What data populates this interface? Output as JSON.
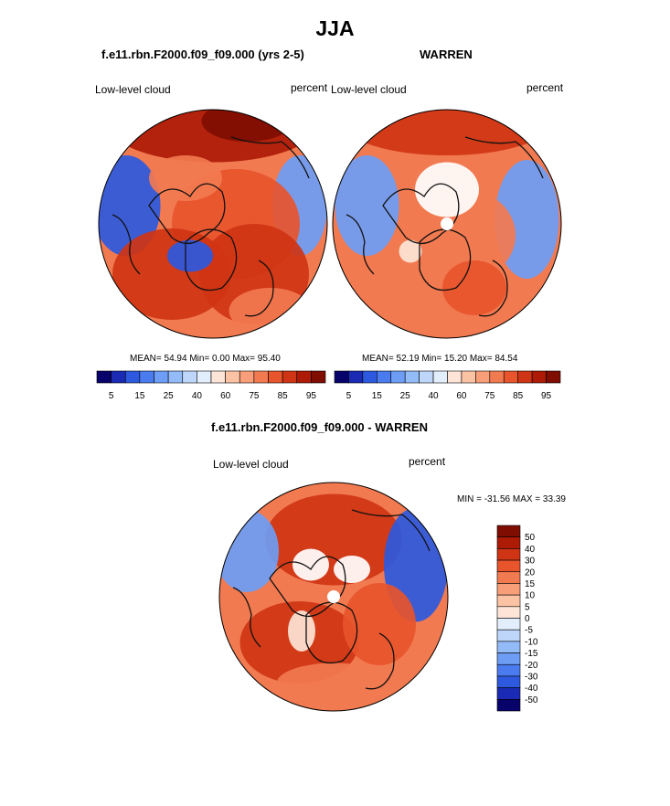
{
  "page_title": "JJA",
  "panels": [
    {
      "title": "f.e11.rbn.F2000.f09_f09.000 (yrs 2-5)",
      "variable": "Low-level cloud",
      "units": "percent",
      "stats": "MEAN=  54.94  Min=   0.00  Max=  95.40"
    },
    {
      "title": "WARREN",
      "variable": "Low-level cloud",
      "units": "percent",
      "stats": "MEAN=  52.19  Min=  15.20  Max=  84.54"
    }
  ],
  "diff_panel": {
    "title": "f.e11.rbn.F2000.f09_f09.000 - WARREN",
    "variable": "Low-level cloud",
    "units": "percent",
    "minmax": "MIN = -31.56 MAX =  33.39"
  },
  "chart_data": [
    {
      "type": "heatmap",
      "title": "f.e11.rbn.F2000.f09_f09.000 (yrs 2-5)",
      "projection": "north polar stereographic",
      "variable": "Low-level cloud",
      "units": "percent",
      "mean": 54.94,
      "min": 0.0,
      "max": 95.4,
      "colorbar_levels": [
        5,
        10,
        15,
        20,
        25,
        30,
        40,
        50,
        60,
        70,
        75,
        80,
        85,
        90,
        95
      ],
      "colorbar_labels": [
        "5",
        "15",
        "25",
        "40",
        "60",
        "75",
        "85",
        "95"
      ],
      "colors": [
        "#08036a",
        "#1a2ab4",
        "#2d59df",
        "#4a7cf0",
        "#6d9df5",
        "#93bbf8",
        "#bdd6fa",
        "#e3eefc",
        "#fde4d6",
        "#fbc2a4",
        "#f89e78",
        "#f27a50",
        "#e8542c",
        "#cf3414",
        "#ad1a06",
        "#7f0d02"
      ]
    },
    {
      "type": "heatmap",
      "title": "WARREN",
      "projection": "north polar stereographic",
      "variable": "Low-level cloud",
      "units": "percent",
      "mean": 52.19,
      "min": 15.2,
      "max": 84.54,
      "colorbar_levels": [
        5,
        10,
        15,
        20,
        25,
        30,
        40,
        50,
        60,
        70,
        75,
        80,
        85,
        90,
        95
      ],
      "colorbar_labels": [
        "5",
        "15",
        "25",
        "40",
        "60",
        "75",
        "85",
        "95"
      ],
      "colors": [
        "#08036a",
        "#1a2ab4",
        "#2d59df",
        "#4a7cf0",
        "#6d9df5",
        "#93bbf8",
        "#bdd6fa",
        "#e3eefc",
        "#fde4d6",
        "#fbc2a4",
        "#f89e78",
        "#f27a50",
        "#e8542c",
        "#cf3414",
        "#ad1a06",
        "#7f0d02"
      ]
    },
    {
      "type": "heatmap",
      "title": "f.e11.rbn.F2000.f09_f09.000 - WARREN",
      "projection": "north polar stereographic",
      "variable": "Low-level cloud",
      "units": "percent",
      "min": -31.56,
      "max": 33.39,
      "colorbar_orientation": "vertical",
      "colorbar_labels": [
        "50",
        "40",
        "30",
        "20",
        "15",
        "10",
        "5",
        "0",
        "-5",
        "-10",
        "-15",
        "-20",
        "-30",
        "-40",
        "-50"
      ],
      "colors": [
        "#7f0d02",
        "#ad1a06",
        "#cf3414",
        "#e8542c",
        "#f27a50",
        "#f89e78",
        "#fbc2a4",
        "#fde4d6",
        "#e3eefc",
        "#bdd6fa",
        "#93bbf8",
        "#6d9df5",
        "#4a7cf0",
        "#2d59df",
        "#1a2ab4",
        "#08036a"
      ]
    }
  ]
}
